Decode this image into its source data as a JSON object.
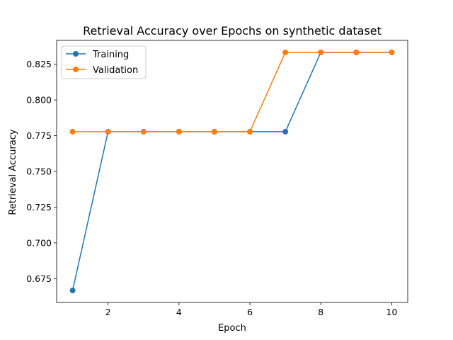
{
  "chart_data": {
    "type": "line",
    "title": "Retrieval Accuracy over Epochs on synthetic dataset",
    "xlabel": "Epoch",
    "ylabel": "Retrieval Accuracy",
    "x": [
      1,
      2,
      3,
      4,
      5,
      6,
      7,
      8,
      9,
      10
    ],
    "xlim": [
      0.55,
      10.45
    ],
    "ylim": [
      0.6583,
      0.8417
    ],
    "xticks": [
      2,
      4,
      6,
      8,
      10
    ],
    "xtick_labels": [
      "2",
      "4",
      "6",
      "8",
      "10"
    ],
    "yticks": [
      0.675,
      0.7,
      0.725,
      0.75,
      0.775,
      0.8,
      0.825
    ],
    "ytick_labels": [
      "0.675",
      "0.700",
      "0.725",
      "0.750",
      "0.775",
      "0.800",
      "0.825"
    ],
    "grid": false,
    "legend_position": "top-left",
    "series": [
      {
        "name": "Training",
        "color": "#1f77b4",
        "marker": "circle",
        "values": [
          0.6667,
          0.7778,
          0.7778,
          0.7778,
          0.7778,
          0.7778,
          0.7778,
          0.8333,
          0.8333,
          0.8333
        ]
      },
      {
        "name": "Validation",
        "color": "#ff7f0e",
        "marker": "circle",
        "values": [
          0.7778,
          0.7778,
          0.7778,
          0.7778,
          0.7778,
          0.7778,
          0.8333,
          0.8333,
          0.8333,
          0.8333
        ]
      }
    ]
  }
}
